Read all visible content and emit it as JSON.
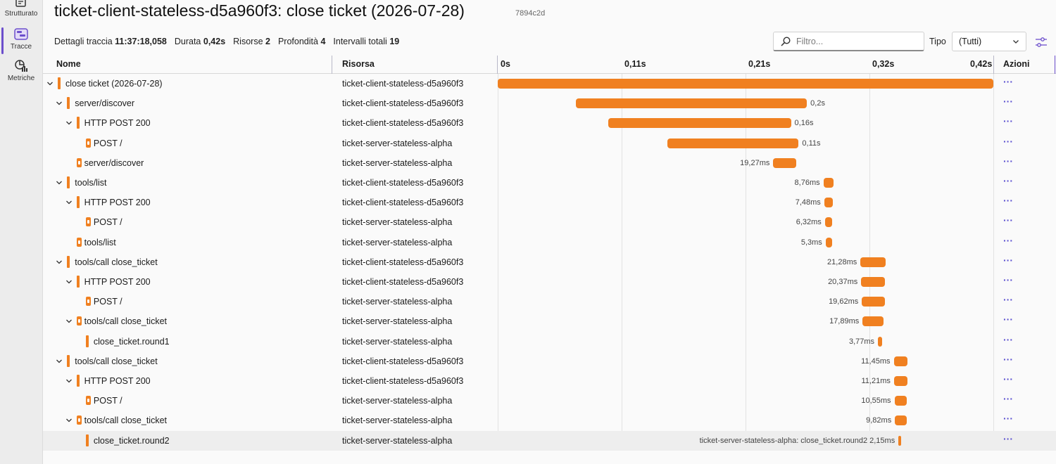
{
  "nav": {
    "items": [
      {
        "label": "Strutturato",
        "icon": "structured-logs-icon"
      },
      {
        "label": "Tracce",
        "icon": "traces-icon",
        "active": true
      },
      {
        "label": "Metriche",
        "icon": "metrics-icon"
      }
    ]
  },
  "header": {
    "title": "ticket-client-stateless-d5a960f3: close ticket (2026-07-28)",
    "trace_id": "7894c2d"
  },
  "summary": {
    "details_label": "Dettagli traccia",
    "details_value": "11:37:18,058",
    "duration_label": "Durata",
    "duration_value": "0,42s",
    "resources_label": "Risorse",
    "resources_value": "2",
    "depth_label": "Profondità",
    "depth_value": "4",
    "spans_label": "Intervalli totali",
    "spans_value": "19"
  },
  "filter": {
    "placeholder": "Filtro...",
    "value": ""
  },
  "type_filter": {
    "label": "Tipo",
    "selected": "(Tutti)"
  },
  "columns": {
    "name": "Nome",
    "resource": "Risorsa",
    "actions": "Azioni"
  },
  "timeline": {
    "total_s": 0.42,
    "ticks": [
      {
        "label": "0s",
        "s": 0
      },
      {
        "label": "0,11s",
        "s": 0.105
      },
      {
        "label": "0,21s",
        "s": 0.21
      },
      {
        "label": "0,32s",
        "s": 0.315
      },
      {
        "label": "0,42s",
        "s": 0.42
      }
    ]
  },
  "spans": [
    {
      "name": "close ticket (2026-07-28)",
      "resource": "ticket-client-stateless-d5a960f3",
      "depth": 0,
      "expanded": true,
      "kind": "client",
      "start_s": 0,
      "duration_s": 0.42,
      "duration_label": ""
    },
    {
      "name": "server/discover",
      "resource": "ticket-client-stateless-d5a960f3",
      "depth": 1,
      "expanded": true,
      "kind": "client",
      "start_s": 0.0665,
      "duration_s": 0.1955,
      "duration_label": "0,2s"
    },
    {
      "name": "HTTP POST 200",
      "resource": "ticket-client-stateless-d5a960f3",
      "depth": 2,
      "expanded": true,
      "kind": "client",
      "start_s": 0.0935,
      "duration_s": 0.155,
      "duration_label": "0,16s"
    },
    {
      "name": "POST /",
      "resource": "ticket-server-stateless-alpha",
      "depth": 3,
      "expanded": null,
      "kind": "server",
      "start_s": 0.1435,
      "duration_s": 0.1115,
      "duration_label": "0,11s"
    },
    {
      "name": "server/discover",
      "resource": "ticket-server-stateless-alpha",
      "depth": 2,
      "expanded": null,
      "kind": "server",
      "start_s": 0.2335,
      "duration_s": 0.01927,
      "duration_label": "19,27ms",
      "label_left": true
    },
    {
      "name": "tools/list",
      "resource": "ticket-client-stateless-d5a960f3",
      "depth": 1,
      "expanded": true,
      "kind": "client",
      "start_s": 0.276,
      "duration_s": 0.00876,
      "duration_label": "8,76ms",
      "label_left": true
    },
    {
      "name": "HTTP POST 200",
      "resource": "ticket-client-stateless-d5a960f3",
      "depth": 2,
      "expanded": true,
      "kind": "client",
      "start_s": 0.2767,
      "duration_s": 0.00748,
      "duration_label": "7,48ms",
      "label_left": true
    },
    {
      "name": "POST /",
      "resource": "ticket-server-stateless-alpha",
      "depth": 3,
      "expanded": null,
      "kind": "server",
      "start_s": 0.2773,
      "duration_s": 0.00632,
      "duration_label": "6,32ms",
      "label_left": true
    },
    {
      "name": "tools/list",
      "resource": "ticket-server-stateless-alpha",
      "depth": 2,
      "expanded": null,
      "kind": "server",
      "start_s": 0.2779,
      "duration_s": 0.0053,
      "duration_label": "5,3ms",
      "label_left": true
    },
    {
      "name": "tools/call close_ticket",
      "resource": "ticket-client-stateless-d5a960f3",
      "depth": 1,
      "expanded": true,
      "kind": "client",
      "start_s": 0.3074,
      "duration_s": 0.02128,
      "duration_label": "21,28ms",
      "label_left": true
    },
    {
      "name": "HTTP POST 200",
      "resource": "ticket-client-stateless-d5a960f3",
      "depth": 2,
      "expanded": true,
      "kind": "client",
      "start_s": 0.308,
      "duration_s": 0.02037,
      "duration_label": "20,37ms",
      "label_left": true
    },
    {
      "name": "POST /",
      "resource": "ticket-server-stateless-alpha",
      "depth": 3,
      "expanded": null,
      "kind": "server",
      "start_s": 0.3086,
      "duration_s": 0.01962,
      "duration_label": "19,62ms",
      "label_left": true
    },
    {
      "name": "tools/call close_ticket",
      "resource": "ticket-server-stateless-alpha",
      "depth": 2,
      "expanded": true,
      "kind": "server",
      "start_s": 0.3092,
      "duration_s": 0.01789,
      "duration_label": "17,89ms",
      "label_left": true
    },
    {
      "name": "close_ticket.round1",
      "resource": "ticket-server-stateless-alpha",
      "depth": 3,
      "expanded": null,
      "kind": "client",
      "start_s": 0.3222,
      "duration_s": 0.00377,
      "duration_label": "3,77ms",
      "label_left": true
    },
    {
      "name": "tools/call close_ticket",
      "resource": "ticket-client-stateless-d5a960f3",
      "depth": 1,
      "expanded": true,
      "kind": "client",
      "start_s": 0.3356,
      "duration_s": 0.01145,
      "duration_label": "11,45ms",
      "label_left": true
    },
    {
      "name": "HTTP POST 200",
      "resource": "ticket-client-stateless-d5a960f3",
      "depth": 2,
      "expanded": true,
      "kind": "client",
      "start_s": 0.3358,
      "duration_s": 0.01121,
      "duration_label": "11,21ms",
      "label_left": true
    },
    {
      "name": "POST /",
      "resource": "ticket-server-stateless-alpha",
      "depth": 3,
      "expanded": null,
      "kind": "server",
      "start_s": 0.3362,
      "duration_s": 0.01055,
      "duration_label": "10,55ms",
      "label_left": true
    },
    {
      "name": "tools/call close_ticket",
      "resource": "ticket-server-stateless-alpha",
      "depth": 2,
      "expanded": true,
      "kind": "server",
      "start_s": 0.3366,
      "duration_s": 0.00982,
      "duration_label": "9,82ms",
      "label_left": true
    },
    {
      "name": "close_ticket.round2",
      "resource": "ticket-server-stateless-alpha",
      "depth": 3,
      "expanded": null,
      "kind": "client",
      "start_s": 0.3396,
      "duration_s": 0.00215,
      "duration_label": "ticket-server-stateless-alpha: close_ticket.round2 2,15ms",
      "label_left": true,
      "selected": true
    }
  ]
}
